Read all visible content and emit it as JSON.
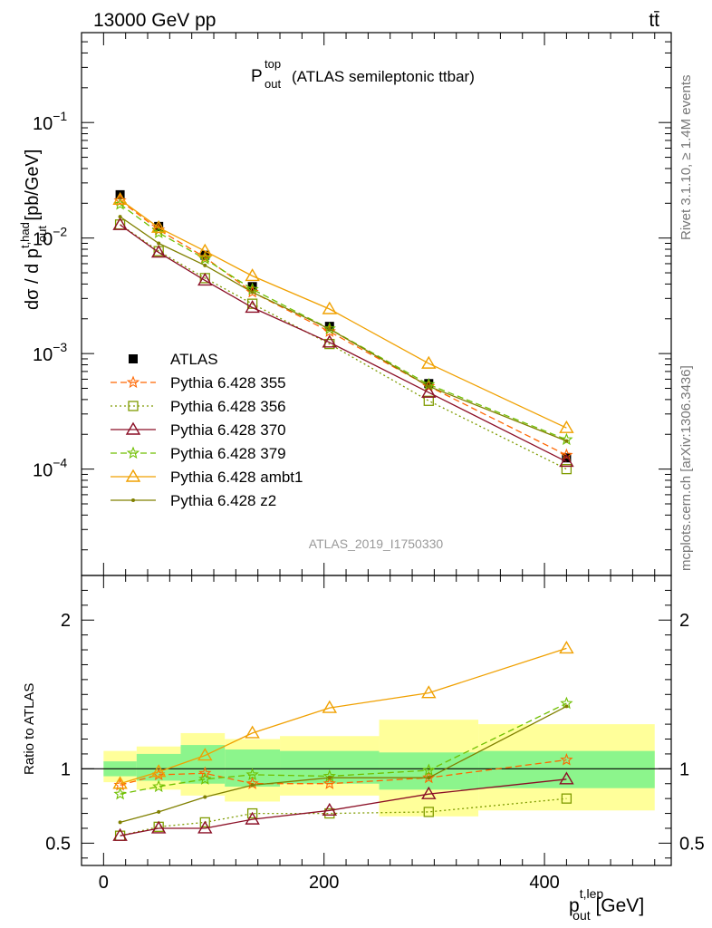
{
  "header": {
    "beam_label": "13000 GeV pp",
    "process_label": "tt̄",
    "plot_title_main": "P",
    "plot_title_sup": "top",
    "plot_title_sub": "out",
    "plot_title_rest": "(ATLAS semileptonic ttbar)",
    "analysis_id": "ATLAS_2019_I1750330",
    "rivet_label": "Rivet 3.1.10, ≥ 1.4M events",
    "mcplots_label": "mcplots.cern.ch [arXiv:1306.3436]"
  },
  "colors": {
    "atlas": "#000000",
    "p355": "#ff6600",
    "p356": "#7f9b00",
    "p370": "#8b0f26",
    "p379": "#6fbf00",
    "ambt1": "#f0a000",
    "z2": "#808000",
    "band_inner": "#8cf58c",
    "band_outer": "#ffff9a"
  },
  "chart_data": [
    {
      "type": "scatter",
      "panel": "main",
      "yscale": "log",
      "ylabel_parts": [
        "dσ / d p",
        "t,had",
        "out",
        " [pb/GeV]"
      ],
      "ylim": [
        1.2e-05,
        0.6
      ],
      "yticks": [
        {
          "value": 0.1,
          "base": "10",
          "exp": "−1"
        },
        {
          "value": 0.01,
          "base": "10",
          "exp": "−2"
        },
        {
          "value": 0.001,
          "base": "10",
          "exp": "−3"
        },
        {
          "value": 0.0001,
          "base": "10",
          "exp": "−4"
        }
      ],
      "x": [
        15,
        50,
        92,
        135,
        205,
        295,
        420
      ],
      "series": [
        {
          "name": "ATLAS",
          "key": "atlas",
          "marker": "square",
          "line": "none",
          "values": [
            0.0237,
            0.0126,
            0.0071,
            0.0038,
            0.00172,
            0.00055,
            0.000125
          ]
        },
        {
          "name": "Pythia 6.428 355",
          "key": "p355",
          "marker": "star",
          "line": "dashed",
          "values": [
            0.0211,
            0.0118,
            0.0068,
            0.0034,
            0.00155,
            0.00052,
            0.000132
          ]
        },
        {
          "name": "Pythia 6.428 356",
          "key": "p356",
          "marker": "square-open",
          "line": "dotted",
          "values": [
            0.0131,
            0.0077,
            0.0045,
            0.0027,
            0.00121,
            0.00039,
            0.0001
          ]
        },
        {
          "name": "Pythia 6.428 370",
          "key": "p370",
          "marker": "triangle-open",
          "line": "solid",
          "values": [
            0.013,
            0.0075,
            0.0043,
            0.0025,
            0.00125,
            0.00046,
            0.000116
          ]
        },
        {
          "name": "Pythia 6.428 379",
          "key": "p379",
          "marker": "star",
          "line": "dashed",
          "values": [
            0.0196,
            0.0111,
            0.0066,
            0.0036,
            0.00164,
            0.00054,
            0.00018
          ]
        },
        {
          "name": "Pythia 6.428 ambt1",
          "key": "ambt1",
          "marker": "triangle-open",
          "line": "solid",
          "values": [
            0.0215,
            0.0123,
            0.0077,
            0.0047,
            0.00243,
            0.00082,
            0.000227
          ]
        },
        {
          "name": "Pythia 6.428 z2",
          "key": "z2",
          "marker": "dot",
          "line": "solid",
          "values": [
            0.0153,
            0.009,
            0.0058,
            0.0034,
            0.00163,
            0.00052,
            0.000175
          ]
        }
      ]
    },
    {
      "type": "scatter",
      "panel": "ratio",
      "ylabel": "Ratio to ATLAS",
      "ylim": [
        0.35,
        2.3
      ],
      "xlim": [
        -20,
        515
      ],
      "xticks": [
        0,
        200,
        400
      ],
      "yticks": [
        0.5,
        1,
        2
      ],
      "xlabel_parts": [
        "p",
        "t,lep",
        "out",
        " [GeV]"
      ],
      "bands": {
        "edges": [
          0,
          30,
          70,
          110,
          160,
          250,
          340,
          500
        ],
        "inner_lo": [
          0.95,
          0.92,
          0.9,
          0.88,
          0.9,
          0.86,
          0.87
        ],
        "inner_hi": [
          1.05,
          1.1,
          1.16,
          1.13,
          1.12,
          1.11,
          1.12
        ],
        "outer_lo": [
          0.91,
          0.86,
          0.82,
          0.78,
          0.82,
          0.68,
          0.72
        ],
        "outer_hi": [
          1.12,
          1.15,
          1.24,
          1.2,
          1.22,
          1.33,
          1.3
        ]
      },
      "x": [
        15,
        50,
        92,
        135,
        205,
        295,
        420
      ],
      "series": [
        {
          "key": "p355",
          "marker": "star",
          "line": "dashed",
          "values": [
            0.89,
            0.96,
            0.97,
            0.9,
            0.9,
            0.94,
            1.06
          ]
        },
        {
          "key": "p356",
          "marker": "square-open",
          "line": "dotted",
          "values": [
            0.55,
            0.61,
            0.64,
            0.7,
            0.7,
            0.71,
            0.8
          ]
        },
        {
          "key": "p370",
          "marker": "triangle-open",
          "line": "solid",
          "values": [
            0.55,
            0.6,
            0.6,
            0.66,
            0.72,
            0.83,
            0.93
          ]
        },
        {
          "key": "p379",
          "marker": "star",
          "line": "dashed",
          "values": [
            0.83,
            0.88,
            0.93,
            0.96,
            0.95,
            0.99,
            1.44
          ]
        },
        {
          "key": "ambt1",
          "marker": "triangle-open",
          "line": "solid",
          "values": [
            0.9,
            0.98,
            1.09,
            1.24,
            1.41,
            1.51,
            1.81
          ]
        },
        {
          "key": "z2",
          "marker": "dot",
          "line": "solid",
          "values": [
            0.64,
            0.71,
            0.81,
            0.89,
            0.94,
            0.94,
            1.42
          ]
        }
      ]
    }
  ]
}
